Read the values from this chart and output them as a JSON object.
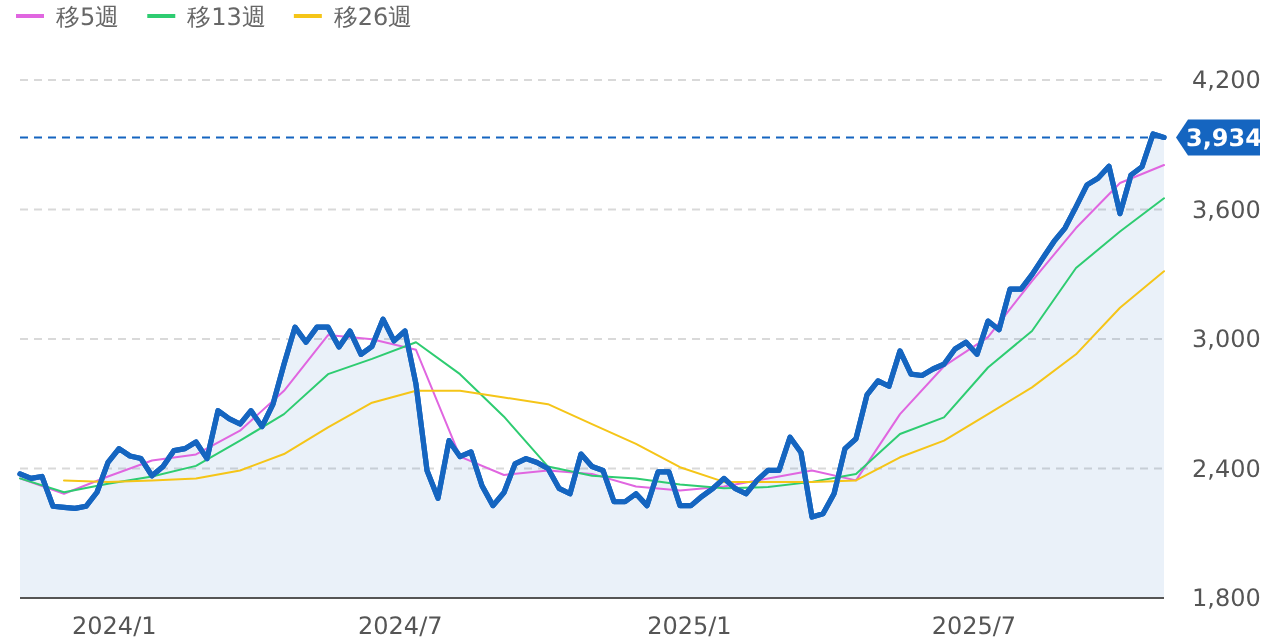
{
  "chart_data": {
    "type": "line",
    "x": [
      "2023-11-02",
      "2023-11-09",
      "2023-11-16",
      "2023-11-23",
      "2023-11-30",
      "2023-12-07",
      "2023-12-14",
      "2023-12-21",
      "2023-12-28",
      "2024-01-04",
      "2024-01-11",
      "2024-01-18",
      "2024-01-25",
      "2024-02-01",
      "2024-02-08",
      "2024-02-15",
      "2024-02-22",
      "2024-02-29",
      "2024-03-07",
      "2024-03-14",
      "2024-03-21",
      "2024-03-28",
      "2024-04-04",
      "2024-04-11",
      "2024-04-18",
      "2024-04-25",
      "2024-05-02",
      "2024-05-09",
      "2024-05-16",
      "2024-05-23",
      "2024-05-30",
      "2024-06-06",
      "2024-06-13",
      "2024-06-20",
      "2024-06-27",
      "2024-07-04",
      "2024-07-11",
      "2024-07-18",
      "2024-07-25",
      "2024-08-01",
      "2024-08-08",
      "2024-08-15",
      "2024-08-22",
      "2024-08-29",
      "2024-09-05",
      "2024-09-12",
      "2024-09-19",
      "2024-09-26",
      "2024-10-03",
      "2024-10-10",
      "2024-10-17",
      "2024-10-24",
      "2024-10-31",
      "2024-11-07",
      "2024-11-14",
      "2024-11-21",
      "2024-11-28",
      "2024-12-05",
      "2024-12-12",
      "2024-12-19",
      "2024-12-26",
      "2025-01-02",
      "2025-01-09",
      "2025-01-16",
      "2025-01-23",
      "2025-01-30",
      "2025-02-06",
      "2025-02-13",
      "2025-02-20",
      "2025-02-27",
      "2025-03-06",
      "2025-03-13",
      "2025-03-20",
      "2025-03-27",
      "2025-04-03",
      "2025-04-10",
      "2025-04-17",
      "2025-04-24",
      "2025-05-01",
      "2025-05-08",
      "2025-05-15",
      "2025-05-22",
      "2025-05-29",
      "2025-06-05",
      "2025-06-12",
      "2025-06-19",
      "2025-06-26",
      "2025-07-03",
      "2025-07-10",
      "2025-07-17",
      "2025-07-24",
      "2025-07-31",
      "2025-08-07",
      "2025-08-14",
      "2025-08-21",
      "2025-08-28",
      "2025-09-04",
      "2025-09-11",
      "2025-09-18",
      "2025-09-25",
      "2025-10-02",
      "2025-10-09",
      "2025-10-16",
      "2025-10-23",
      "2025-10-30"
    ],
    "series": [
      {
        "type": "area",
        "color": "#1565c0",
        "values": [
          2375,
          2354,
          2363,
          2225,
          2220,
          2215,
          2225,
          2290,
          2428,
          2492,
          2458,
          2446,
          2366,
          2409,
          2483,
          2492,
          2523,
          2446,
          2668,
          2631,
          2606,
          2668,
          2594,
          2698,
          2883,
          3055,
          2985,
          3055,
          3055,
          2963,
          3037,
          2929,
          2966,
          3092,
          2991,
          3037,
          2790,
          2391,
          2262,
          2529,
          2455,
          2477,
          2320,
          2228,
          2289,
          2421,
          2446,
          2428,
          2400,
          2308,
          2283,
          2467,
          2409,
          2391,
          2246,
          2246,
          2283,
          2228,
          2384,
          2384,
          2228,
          2228,
          2271,
          2308,
          2354,
          2308,
          2283,
          2345,
          2391,
          2391,
          2545,
          2474,
          2175,
          2190,
          2283,
          2492,
          2538,
          2741,
          2806,
          2781,
          2945,
          2837,
          2831,
          2861,
          2883,
          2954,
          2985,
          2929,
          3083,
          3043,
          3231,
          3231,
          3298,
          3376,
          3452,
          3514,
          3612,
          3714,
          3745,
          3800,
          3581,
          3760,
          3798,
          3950,
          3934
        ]
      },
      {
        "name": "移5週",
        "color": "#e066e0",
        "x": [
          "2023-11-02",
          "2023-11-30",
          "2023-12-28",
          "2024-01-25",
          "2024-02-22",
          "2024-03-21",
          "2024-04-18",
          "2024-05-16",
          "2024-06-13",
          "2024-07-11",
          "2024-08-08",
          "2024-09-05",
          "2024-10-03",
          "2024-10-31",
          "2024-11-28",
          "2024-12-26",
          "2025-01-23",
          "2025-02-20",
          "2025-03-20",
          "2025-04-17",
          "2025-05-15",
          "2025-06-12",
          "2025-07-10",
          "2025-08-07",
          "2025-09-04",
          "2025-10-02",
          "2025-10-30"
        ],
        "values": [
          2354,
          2283,
          2363,
          2437,
          2465,
          2575,
          2760,
          3018,
          2999,
          2950,
          2455,
          2370,
          2391,
          2375,
          2317,
          2298,
          2317,
          2354,
          2391,
          2345,
          2652,
          2874,
          3009,
          3268,
          3514,
          3723,
          3806
        ]
      },
      {
        "name": "移13週",
        "color": "#2ecc71",
        "x": [
          "2023-11-02",
          "2023-11-30",
          "2023-12-28",
          "2024-01-25",
          "2024-02-22",
          "2024-03-21",
          "2024-04-18",
          "2024-05-16",
          "2024-06-13",
          "2024-07-11",
          "2024-08-08",
          "2024-09-05",
          "2024-10-03",
          "2024-10-31",
          "2024-11-28",
          "2024-12-26",
          "2025-01-23",
          "2025-02-20",
          "2025-03-20",
          "2025-04-17",
          "2025-05-15",
          "2025-06-12",
          "2025-07-10",
          "2025-08-07",
          "2025-09-04",
          "2025-10-02",
          "2025-10-30"
        ],
        "values": [
          2354,
          2290,
          2329,
          2363,
          2412,
          2529,
          2652,
          2837,
          2908,
          2985,
          2837,
          2640,
          2409,
          2366,
          2354,
          2326,
          2308,
          2314,
          2338,
          2375,
          2560,
          2637,
          2868,
          3037,
          3329,
          3498,
          3652
        ]
      },
      {
        "name": "移26週",
        "color": "#f5c518",
        "x": [
          "2023-11-30",
          "2023-12-28",
          "2024-01-25",
          "2024-02-22",
          "2024-03-21",
          "2024-04-18",
          "2024-05-16",
          "2024-06-13",
          "2024-07-11",
          "2024-08-08",
          "2024-09-05",
          "2024-10-03",
          "2024-10-31",
          "2024-11-28",
          "2024-12-26",
          "2025-01-23",
          "2025-02-20",
          "2025-03-20",
          "2025-04-17",
          "2025-05-15",
          "2025-06-12",
          "2025-07-10",
          "2025-08-07",
          "2025-09-04",
          "2025-10-02",
          "2025-10-30"
        ],
        "values": [
          2345,
          2338,
          2345,
          2354,
          2391,
          2467,
          2591,
          2705,
          2760,
          2760,
          2729,
          2698,
          2606,
          2514,
          2406,
          2338,
          2338,
          2338,
          2345,
          2452,
          2529,
          2652,
          2776,
          2929,
          3145,
          3314
        ]
      }
    ],
    "xlim": [
      "2023-11-02",
      "2025-10-30"
    ],
    "xticks": [
      {
        "value": "2024-01-01",
        "label": "2024/1"
      },
      {
        "value": "2024-07-01",
        "label": "2024/7"
      },
      {
        "value": "2025-01-01",
        "label": "2025/1"
      },
      {
        "value": "2025-07-01",
        "label": "2025/7"
      }
    ],
    "ylim": [
      1800,
      4200
    ],
    "yticks": [
      {
        "value": 1800,
        "label": "1,800"
      },
      {
        "value": 2400,
        "label": "2,400"
      },
      {
        "value": 3000,
        "label": "3,000"
      },
      {
        "value": 3600,
        "label": "3,600"
      },
      {
        "value": 4200,
        "label": "4,200"
      }
    ],
    "ref_lines": [
      {
        "axis": "y",
        "value": 3934,
        "label": "3,934",
        "color": "#1565c0",
        "line_style": "dashed"
      }
    ],
    "grid": "y",
    "legend": "top left",
    "marker": "none",
    "line_style": "solid"
  }
}
